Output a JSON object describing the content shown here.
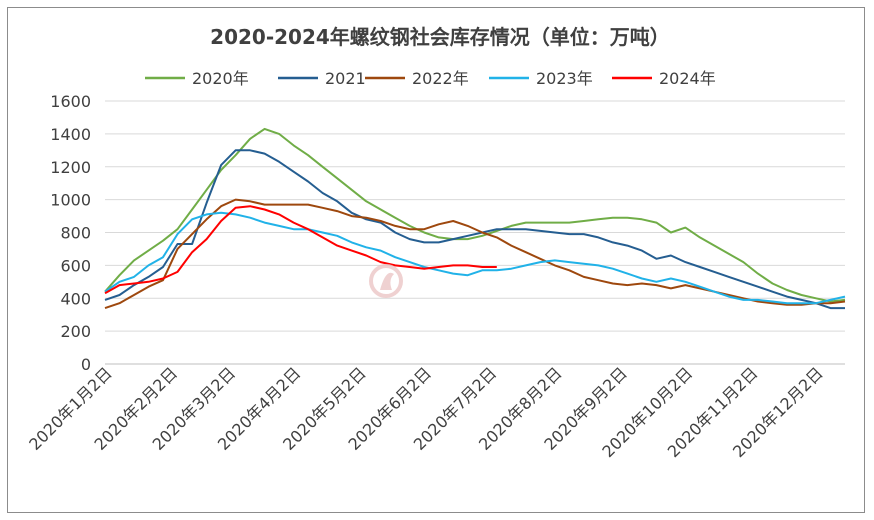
{
  "chart_data": {
    "type": "line",
    "title": "2020-2024年螺纹钢社会库存情况（单位：万吨）",
    "ylim": [
      0,
      1600
    ],
    "yticks": [
      0,
      200,
      400,
      600,
      800,
      1000,
      1200,
      1400,
      1600
    ],
    "xlim": [
      1,
      52
    ],
    "x_tick_labels": [
      "2020年1月2日",
      "2020年2月2日",
      "2020年3月2日",
      "2020年4月2日",
      "2020年5月2日",
      "2020年6月2日",
      "2020年7月2日",
      "2020年8月2日",
      "2020年9月2日",
      "2020年10月2日",
      "2020年11月2日",
      "2020年12月2日"
    ],
    "x_tick_weeks": [
      1,
      5.5,
      9.5,
      14,
      18.5,
      23,
      27.5,
      32,
      36.5,
      41,
      45.5,
      50
    ],
    "grid": "horizontal",
    "legend_position": "top",
    "series": [
      {
        "name": "2020年",
        "color": "#70ad47",
        "points": [
          [
            1,
            440
          ],
          [
            2,
            540
          ],
          [
            3,
            630
          ],
          [
            4,
            690
          ],
          [
            5,
            750
          ],
          [
            6,
            820
          ],
          [
            7,
            940
          ],
          [
            8,
            1060
          ],
          [
            9,
            1180
          ],
          [
            10,
            1270
          ],
          [
            11,
            1370
          ],
          [
            12,
            1430
          ],
          [
            13,
            1400
          ],
          [
            14,
            1330
          ],
          [
            15,
            1270
          ],
          [
            16,
            1200
          ],
          [
            17,
            1130
          ],
          [
            18,
            1060
          ],
          [
            19,
            990
          ],
          [
            20,
            940
          ],
          [
            21,
            890
          ],
          [
            22,
            840
          ],
          [
            23,
            800
          ],
          [
            24,
            770
          ],
          [
            25,
            760
          ],
          [
            26,
            760
          ],
          [
            27,
            780
          ],
          [
            28,
            810
          ],
          [
            29,
            840
          ],
          [
            30,
            860
          ],
          [
            31,
            860
          ],
          [
            32,
            860
          ],
          [
            33,
            860
          ],
          [
            34,
            870
          ],
          [
            35,
            880
          ],
          [
            36,
            890
          ],
          [
            37,
            890
          ],
          [
            38,
            880
          ],
          [
            39,
            860
          ],
          [
            40,
            800
          ],
          [
            41,
            830
          ],
          [
            42,
            770
          ],
          [
            43,
            720
          ],
          [
            44,
            670
          ],
          [
            45,
            620
          ],
          [
            46,
            550
          ],
          [
            47,
            490
          ],
          [
            48,
            450
          ],
          [
            49,
            420
          ],
          [
            50,
            400
          ],
          [
            51,
            380
          ],
          [
            52,
            390
          ]
        ]
      },
      {
        "name": "2021",
        "color": "#255e91",
        "points": [
          [
            1,
            390
          ],
          [
            2,
            420
          ],
          [
            3,
            480
          ],
          [
            4,
            530
          ],
          [
            5,
            590
          ],
          [
            6,
            730
          ],
          [
            7,
            730
          ],
          [
            8,
            980
          ],
          [
            9,
            1210
          ],
          [
            10,
            1300
          ],
          [
            11,
            1300
          ],
          [
            12,
            1280
          ],
          [
            13,
            1230
          ],
          [
            14,
            1170
          ],
          [
            15,
            1110
          ],
          [
            16,
            1040
          ],
          [
            17,
            990
          ],
          [
            18,
            920
          ],
          [
            19,
            880
          ],
          [
            20,
            860
          ],
          [
            21,
            800
          ],
          [
            22,
            760
          ],
          [
            23,
            740
          ],
          [
            24,
            740
          ],
          [
            25,
            760
          ],
          [
            26,
            780
          ],
          [
            27,
            800
          ],
          [
            28,
            820
          ],
          [
            29,
            820
          ],
          [
            30,
            820
          ],
          [
            31,
            810
          ],
          [
            32,
            800
          ],
          [
            33,
            790
          ],
          [
            34,
            790
          ],
          [
            35,
            770
          ],
          [
            36,
            740
          ],
          [
            37,
            720
          ],
          [
            38,
            690
          ],
          [
            39,
            640
          ],
          [
            40,
            660
          ],
          [
            41,
            620
          ],
          [
            42,
            590
          ],
          [
            43,
            560
          ],
          [
            44,
            530
          ],
          [
            45,
            500
          ],
          [
            46,
            470
          ],
          [
            47,
            440
          ],
          [
            48,
            410
          ],
          [
            49,
            390
          ],
          [
            50,
            370
          ],
          [
            51,
            340
          ],
          [
            52,
            340
          ]
        ]
      },
      {
        "name": "2022年",
        "color": "#9e480e",
        "points": [
          [
            1,
            340
          ],
          [
            2,
            370
          ],
          [
            3,
            420
          ],
          [
            4,
            470
          ],
          [
            5,
            510
          ],
          [
            6,
            700
          ],
          [
            7,
            790
          ],
          [
            8,
            880
          ],
          [
            9,
            960
          ],
          [
            10,
            1000
          ],
          [
            11,
            990
          ],
          [
            12,
            970
          ],
          [
            13,
            970
          ],
          [
            14,
            970
          ],
          [
            15,
            970
          ],
          [
            16,
            950
          ],
          [
            17,
            930
          ],
          [
            18,
            900
          ],
          [
            19,
            890
          ],
          [
            20,
            870
          ],
          [
            21,
            840
          ],
          [
            22,
            820
          ],
          [
            23,
            820
          ],
          [
            24,
            850
          ],
          [
            25,
            870
          ],
          [
            26,
            840
          ],
          [
            27,
            800
          ],
          [
            28,
            770
          ],
          [
            29,
            720
          ],
          [
            30,
            680
          ],
          [
            31,
            640
          ],
          [
            32,
            600
          ],
          [
            33,
            570
          ],
          [
            34,
            530
          ],
          [
            35,
            510
          ],
          [
            36,
            490
          ],
          [
            37,
            480
          ],
          [
            38,
            490
          ],
          [
            39,
            480
          ],
          [
            40,
            460
          ],
          [
            41,
            480
          ],
          [
            42,
            460
          ],
          [
            43,
            440
          ],
          [
            44,
            420
          ],
          [
            45,
            400
          ],
          [
            46,
            380
          ],
          [
            47,
            370
          ],
          [
            48,
            360
          ],
          [
            49,
            360
          ],
          [
            50,
            370
          ],
          [
            51,
            370
          ],
          [
            52,
            380
          ]
        ]
      },
      {
        "name": "2023年",
        "color": "#21b2e8",
        "points": [
          [
            1,
            440
          ],
          [
            2,
            500
          ],
          [
            3,
            530
          ],
          [
            4,
            600
          ],
          [
            5,
            650
          ],
          [
            6,
            790
          ],
          [
            7,
            880
          ],
          [
            8,
            910
          ],
          [
            9,
            920
          ],
          [
            10,
            910
          ],
          [
            11,
            890
          ],
          [
            12,
            860
          ],
          [
            13,
            840
          ],
          [
            14,
            820
          ],
          [
            15,
            820
          ],
          [
            16,
            800
          ],
          [
            17,
            780
          ],
          [
            18,
            740
          ],
          [
            19,
            710
          ],
          [
            20,
            690
          ],
          [
            21,
            650
          ],
          [
            22,
            620
          ],
          [
            23,
            590
          ],
          [
            24,
            570
          ],
          [
            25,
            550
          ],
          [
            26,
            540
          ],
          [
            27,
            570
          ],
          [
            28,
            570
          ],
          [
            29,
            580
          ],
          [
            30,
            600
          ],
          [
            31,
            620
          ],
          [
            32,
            630
          ],
          [
            33,
            620
          ],
          [
            34,
            610
          ],
          [
            35,
            600
          ],
          [
            36,
            580
          ],
          [
            37,
            550
          ],
          [
            38,
            520
          ],
          [
            39,
            500
          ],
          [
            40,
            520
          ],
          [
            41,
            500
          ],
          [
            42,
            470
          ],
          [
            43,
            440
          ],
          [
            44,
            410
          ],
          [
            45,
            390
          ],
          [
            46,
            390
          ],
          [
            47,
            380
          ],
          [
            48,
            370
          ],
          [
            49,
            370
          ],
          [
            50,
            370
          ],
          [
            51,
            390
          ],
          [
            52,
            410
          ]
        ]
      },
      {
        "name": "2024年",
        "color": "#ff0000",
        "points": [
          [
            1,
            430
          ],
          [
            2,
            480
          ],
          [
            3,
            490
          ],
          [
            4,
            500
          ],
          [
            5,
            520
          ],
          [
            6,
            560
          ],
          [
            7,
            680
          ],
          [
            8,
            760
          ],
          [
            9,
            870
          ],
          [
            10,
            950
          ],
          [
            11,
            960
          ],
          [
            12,
            940
          ],
          [
            13,
            910
          ],
          [
            14,
            860
          ],
          [
            15,
            820
          ],
          [
            16,
            770
          ],
          [
            17,
            720
          ],
          [
            18,
            690
          ],
          [
            19,
            660
          ],
          [
            20,
            620
          ],
          [
            21,
            600
          ],
          [
            22,
            590
          ],
          [
            23,
            580
          ],
          [
            24,
            590
          ],
          [
            25,
            600
          ],
          [
            26,
            600
          ],
          [
            27,
            590
          ],
          [
            28,
            590
          ]
        ]
      }
    ]
  }
}
